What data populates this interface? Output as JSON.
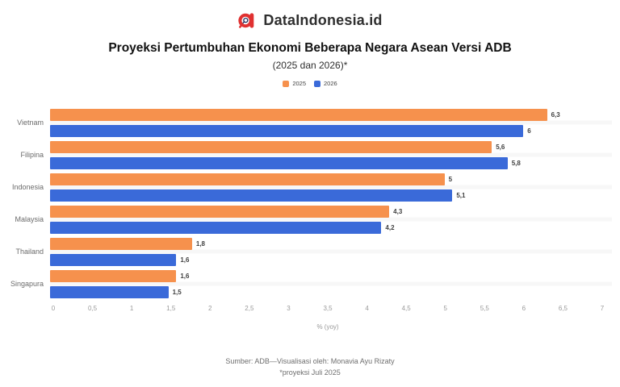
{
  "header": {
    "brand": "DataIndonesia.id",
    "title": "Proyeksi Pertumbuhan Ekonomi Beberapa Negara Asean Versi ADB",
    "subtitle": "(2025 dan 2026)*"
  },
  "colors": {
    "series_2025": "#F6914D",
    "series_2026": "#3A6AD9",
    "logo_red": "#E03131"
  },
  "chart_data": {
    "type": "bar",
    "orientation": "horizontal",
    "title": "Proyeksi Pertumbuhan Ekonomi Beberapa Negara Asean Versi ADB",
    "subtitle": "(2025 dan 2026)*",
    "categories": [
      "Vietnam",
      "Filipina",
      "Indonesia",
      "Malaysia",
      "Thailand",
      "Singapura"
    ],
    "series": [
      {
        "name": "2025",
        "color": "#F6914D",
        "values": [
          6.3,
          5.6,
          5.0,
          4.3,
          1.8,
          1.6
        ],
        "labels": [
          "6,3",
          "5,6",
          "5",
          "4,3",
          "1,8",
          "1,6"
        ]
      },
      {
        "name": "2026",
        "color": "#3A6AD9",
        "values": [
          6.0,
          5.8,
          5.1,
          4.2,
          1.6,
          1.5
        ],
        "labels": [
          "6",
          "5,8",
          "5,1",
          "4,2",
          "1,6",
          "1,5"
        ]
      }
    ],
    "xlabel": "% (yoy)",
    "xlim": [
      0,
      7
    ],
    "xticks": {
      "values": [
        0,
        0.5,
        1,
        1.5,
        2,
        2.5,
        3,
        3.5,
        4,
        4.5,
        5,
        5.5,
        6,
        6.5,
        7
      ],
      "labels": [
        "0",
        "0,5",
        "1",
        "1,5",
        "2",
        "2,5",
        "3",
        "3,5",
        "4",
        "4,5",
        "5",
        "5,5",
        "6",
        "6,5",
        "7"
      ]
    },
    "legend_position": "top",
    "grid": false
  },
  "footer": {
    "line1": "Sumber: ADB—Visualisasi oleh: Monavia Ayu Rizaty",
    "line2": "*proyeksi Juli 2025"
  }
}
